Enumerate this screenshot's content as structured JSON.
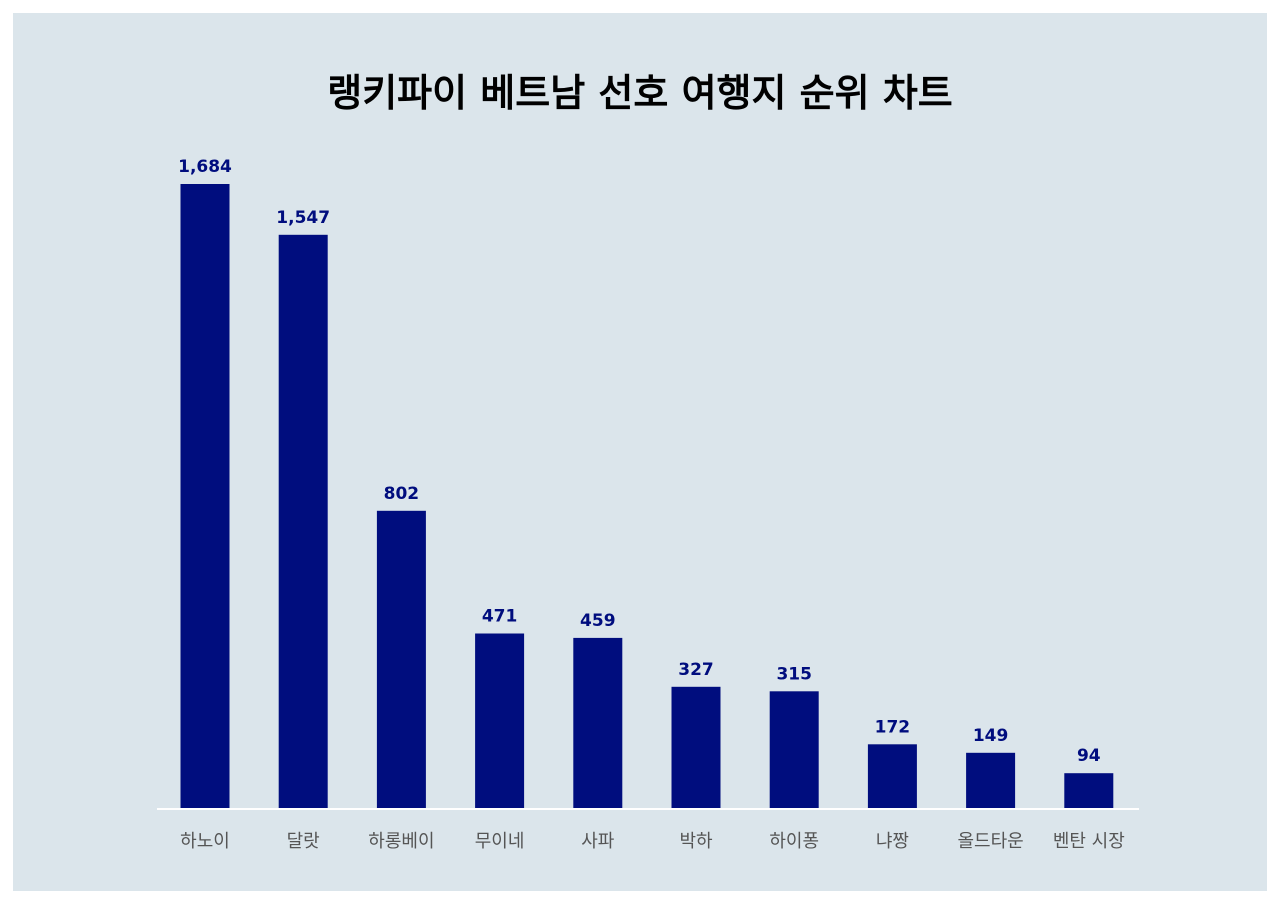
{
  "chart_data": {
    "type": "bar",
    "title": "랭키파이 베트남 선호 여행지 순위 차트",
    "xlabel": "",
    "ylabel": "",
    "ylim": [
      0,
      1684
    ],
    "grid": false,
    "categories": [
      "하노이",
      "달랏",
      "하롱베이",
      "무이네",
      "사파",
      "박하",
      "하이퐁",
      "냐짱",
      "올드타운",
      "벤탄 시장"
    ],
    "values": [
      1684,
      1547,
      802,
      471,
      459,
      327,
      315,
      172,
      149,
      94
    ],
    "value_labels": [
      "1,684",
      "1,547",
      "802",
      "471",
      "459",
      "327",
      "315",
      "172",
      "149",
      "94"
    ],
    "colors": {
      "bar": "#000d7e",
      "value_label": "#000d7e",
      "background": "#dbe5eb",
      "axis": "#ffffff",
      "tick_label": "#555555"
    }
  }
}
